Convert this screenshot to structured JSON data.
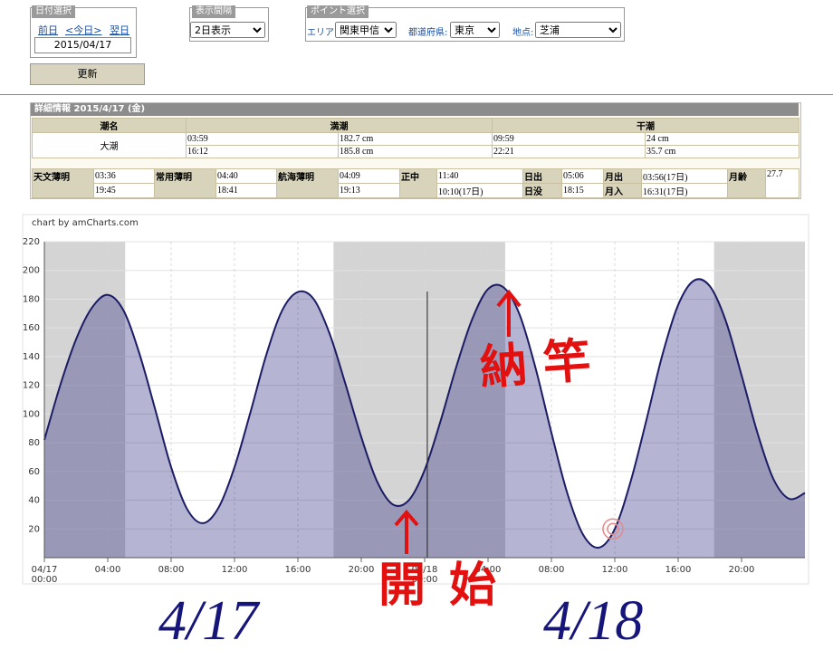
{
  "controls": {
    "date": {
      "legend": "日付選択",
      "prev": "前日",
      "today": "<今日>",
      "next": "翌日",
      "value": "2015/04/17"
    },
    "interval": {
      "legend": "表示間隔",
      "value": "2日表示"
    },
    "point": {
      "legend": "ポイント選択",
      "area_label": "エリア:",
      "area": "関東甲信",
      "pref_label": "都道府県:",
      "pref": "東京",
      "spot_label": "地点:",
      "spot": "芝浦"
    },
    "update_button": "更新"
  },
  "details": {
    "title": "詳細情報 2015/4/17 (金)",
    "tide_table": {
      "headers": [
        "潮名",
        "満潮",
        "干潮"
      ],
      "tide_name": "大潮",
      "high": [
        [
          "03:59",
          "182.7 cm"
        ],
        [
          "16:12",
          "185.8 cm"
        ]
      ],
      "low": [
        [
          "09:59",
          "24 cm"
        ],
        [
          "22:21",
          "35.7 cm"
        ]
      ]
    },
    "sun_moon": [
      {
        "label": "天文薄明",
        "values": [
          "03:36",
          "19:45"
        ]
      },
      {
        "label": "常用薄明",
        "values": [
          "04:40",
          "18:41"
        ]
      },
      {
        "label": "航海薄明",
        "values": [
          "04:09",
          "19:13"
        ]
      },
      {
        "label": "正中",
        "values": [
          "11:40",
          "10:10(17日)"
        ]
      },
      {
        "labels": [
          "日出",
          "日没"
        ],
        "values": [
          "05:06",
          "18:15"
        ]
      },
      {
        "labels": [
          "月出",
          "月入"
        ],
        "values": [
          "03:56(17日)",
          "16:31(17日)"
        ]
      },
      {
        "label": "月齢",
        "values": [
          "27.7"
        ]
      }
    ]
  },
  "chart_data": {
    "type": "area",
    "credit": "chart by amCharts.com",
    "x": [
      "04/17 00:00",
      "04/17 01:00",
      "04/17 02:00",
      "04/17 03:00",
      "04/17 04:00",
      "04/17 05:00",
      "04/17 06:00",
      "04/17 07:00",
      "04/17 08:00",
      "04/17 09:00",
      "04/17 10:00",
      "04/17 11:00",
      "04/17 12:00",
      "04/17 13:00",
      "04/17 14:00",
      "04/17 15:00",
      "04/17 16:00",
      "04/17 17:00",
      "04/17 18:00",
      "04/17 19:00",
      "04/17 20:00",
      "04/17 21:00",
      "04/17 22:00",
      "04/17 23:00",
      "04/18 00:00",
      "04/18 01:00",
      "04/18 02:00",
      "04/18 03:00",
      "04/18 04:00",
      "04/18 05:00",
      "04/18 06:00",
      "04/18 07:00",
      "04/18 08:00",
      "04/18 09:00",
      "04/18 10:00",
      "04/18 11:00",
      "04/18 12:00",
      "04/18 13:00",
      "04/18 14:00",
      "04/18 15:00",
      "04/18 16:00",
      "04/18 17:00",
      "04/18 18:00",
      "04/18 19:00",
      "04/18 20:00",
      "04/18 21:00",
      "04/18 22:00",
      "04/18 23:00",
      "04/19 00:00"
    ],
    "values": [
      82,
      120,
      152,
      174,
      183,
      172,
      142,
      103,
      63,
      34,
      24,
      35,
      63,
      101,
      141,
      172,
      185,
      180,
      156,
      121,
      84,
      53,
      37,
      40,
      61,
      95,
      133,
      166,
      187,
      188,
      169,
      132,
      87,
      45,
      16,
      7,
      20,
      53,
      96,
      141,
      176,
      193,
      189,
      165,
      127,
      87,
      55,
      41,
      45
    ],
    "color": "#1c1c66",
    "fill": "#2a2a80",
    "xlim": [
      "04/17 00:00",
      "04/19 00:00"
    ],
    "xticks": [
      {
        "value": "04/17 00:00",
        "label": [
          "04/17",
          "00:00"
        ]
      },
      {
        "value": "04/17 04:00",
        "label": "04:00"
      },
      {
        "value": "04/17 08:00",
        "label": "08:00"
      },
      {
        "value": "04/17 12:00",
        "label": "12:00"
      },
      {
        "value": "04/17 16:00",
        "label": "16:00"
      },
      {
        "value": "04/17 20:00",
        "label": "20:00"
      },
      {
        "value": "04/18 00:00",
        "label": [
          "04/18",
          "00:00"
        ]
      },
      {
        "value": "04/18 04:00",
        "label": "04:00"
      },
      {
        "value": "04/18 08:00",
        "label": "08:00"
      },
      {
        "value": "04/18 12:00",
        "label": "12:00"
      },
      {
        "value": "04/18 16:00",
        "label": "16:00"
      },
      {
        "value": "04/18 20:00",
        "label": "20:00"
      }
    ],
    "ylim": [
      0,
      220
    ],
    "yticks": [
      20,
      40,
      60,
      80,
      100,
      120,
      140,
      160,
      180,
      200,
      220
    ],
    "grid": true,
    "night": [
      [
        "04/17 00:00",
        "04/17 05:06"
      ],
      [
        "04/17 18:15",
        "04/18 05:05"
      ],
      [
        "04/18 18:16",
        "04/19 00:00"
      ]
    ],
    "cursor": "04/18 00:10",
    "marker": {
      "x": "04/18 11:53",
      "y": 20
    }
  },
  "annotations": {
    "start": "開始",
    "end": "納竿",
    "day1": "4/17",
    "day2": "4/18"
  }
}
